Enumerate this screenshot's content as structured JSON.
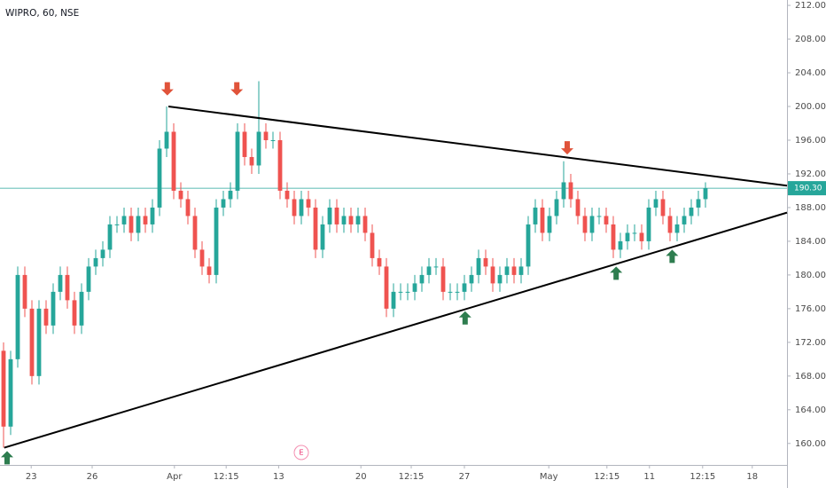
{
  "chart_data": {
    "type": "candlestick",
    "title": "WIPRO, 60, NSE",
    "up_color": "#26a69a",
    "down_color": "#ef5350",
    "xlim": [
      -0.5,
      110.5
    ],
    "xticks": [
      {
        "value": 3.9,
        "label": "23"
      },
      {
        "value": 12.5,
        "label": "26"
      },
      {
        "value": 24.1,
        "label": "Apr"
      },
      {
        "value": 31.4,
        "label": "12:15"
      },
      {
        "value": 38.8,
        "label": "13"
      },
      {
        "value": 50.4,
        "label": "20"
      },
      {
        "value": 57.5,
        "label": "12:15"
      },
      {
        "value": 65,
        "label": "27"
      },
      {
        "value": 76.9,
        "label": "May"
      },
      {
        "value": 85.1,
        "label": "12:15"
      },
      {
        "value": 91.1,
        "label": "11"
      },
      {
        "value": 98.6,
        "label": "12:15"
      },
      {
        "value": 105.6,
        "label": "18"
      }
    ],
    "ylim": [
      157.45,
      212.64
    ],
    "yticks": [
      {
        "value": 160,
        "label": "160.00"
      },
      {
        "value": 164,
        "label": "164.00"
      },
      {
        "value": 168,
        "label": "168.00"
      },
      {
        "value": 172,
        "label": "172.00"
      },
      {
        "value": 176,
        "label": "176.00"
      },
      {
        "value": 180,
        "label": "180.00"
      },
      {
        "value": 184,
        "label": "184.00"
      },
      {
        "value": 188,
        "label": "188.00"
      },
      {
        "value": 192,
        "label": "192.00"
      },
      {
        "value": 196,
        "label": "196.00"
      },
      {
        "value": 200,
        "label": "200.00"
      },
      {
        "value": 204,
        "label": "204.00"
      },
      {
        "value": 208,
        "label": "208.00"
      },
      {
        "value": 212,
        "label": "212.00"
      }
    ],
    "open": [
      171,
      162,
      170,
      180,
      176,
      168,
      176,
      174,
      178,
      180,
      177,
      174,
      178,
      181,
      182,
      183,
      186,
      186,
      187,
      185,
      187,
      186,
      188,
      195,
      197,
      190,
      189,
      187,
      183,
      181,
      180,
      188,
      189,
      190,
      197,
      194,
      193,
      197,
      196,
      196,
      190,
      189,
      187,
      189,
      188,
      183,
      186,
      188,
      186,
      187,
      186,
      187,
      185,
      182,
      181,
      176,
      178,
      178,
      178,
      179,
      180,
      181,
      181,
      178,
      178,
      178,
      179,
      180,
      182,
      181,
      179,
      180,
      181,
      180,
      181,
      186,
      188,
      185,
      187,
      189,
      191,
      189,
      187,
      185,
      187,
      187,
      186,
      183,
      184,
      185,
      185,
      184,
      188,
      189,
      187,
      185,
      186,
      187,
      188,
      189
    ],
    "high": [
      172,
      171,
      181,
      181,
      177,
      177,
      177,
      179,
      181,
      181,
      178,
      179,
      182,
      183,
      184,
      187,
      187,
      188,
      188,
      188,
      188,
      189,
      196,
      200,
      198,
      191,
      190,
      188,
      184,
      182,
      189,
      190,
      191,
      198,
      198,
      195,
      203,
      198,
      197,
      197,
      191,
      190,
      190,
      190,
      189,
      187,
      189,
      189,
      188,
      188,
      188,
      188,
      186,
      183,
      182,
      179,
      179,
      179,
      180,
      181,
      182,
      182,
      182,
      179,
      179,
      180,
      181,
      183,
      183,
      182,
      181,
      182,
      182,
      182,
      187,
      189,
      189,
      188,
      190,
      193.5,
      192,
      190,
      188,
      188,
      188,
      188,
      187,
      185,
      186,
      186,
      186,
      189,
      190,
      190,
      188,
      187,
      188,
      189,
      190,
      191
    ],
    "low": [
      159.5,
      161,
      169,
      175,
      167,
      167,
      173,
      173,
      177,
      176,
      173,
      173,
      177,
      180,
      181,
      182,
      185,
      185,
      184,
      184,
      185,
      185,
      187,
      194,
      189,
      188,
      186,
      182,
      180,
      179,
      179,
      187,
      188,
      189,
      193,
      192,
      192,
      195,
      195,
      189,
      188,
      186,
      186,
      187,
      182,
      182,
      185,
      185,
      185,
      185,
      185,
      184,
      181,
      180,
      175,
      175,
      177,
      177,
      177,
      178,
      179,
      180,
      177,
      177,
      177,
      177,
      178,
      179,
      180,
      178,
      178,
      179,
      179,
      179,
      180,
      185,
      184,
      184,
      186,
      188,
      188,
      186,
      184,
      184,
      186,
      185,
      182,
      182,
      183,
      184,
      183,
      183,
      187,
      186,
      184,
      184,
      185,
      186,
      187,
      188
    ],
    "close": [
      162,
      170,
      180,
      176,
      168,
      176,
      174,
      178,
      180,
      177,
      174,
      178,
      181,
      182,
      183,
      186,
      186,
      187,
      185,
      187,
      186,
      188,
      195,
      197,
      190,
      189,
      187,
      183,
      181,
      180,
      188,
      189,
      190,
      197,
      194,
      193,
      197,
      196,
      196,
      190,
      189,
      187,
      189,
      188,
      183,
      186,
      188,
      186,
      187,
      186,
      187,
      185,
      182,
      181,
      176,
      178,
      178,
      178,
      179,
      180,
      181,
      181,
      178,
      178,
      178,
      179,
      180,
      182,
      181,
      179,
      180,
      181,
      180,
      181,
      186,
      188,
      185,
      187,
      189,
      191,
      189,
      187,
      185,
      187,
      187,
      186,
      183,
      184,
      185,
      185,
      184,
      188,
      189,
      187,
      185,
      186,
      187,
      188,
      189,
      190.3
    ],
    "last_price": {
      "value": 190.3,
      "label": "190.30"
    },
    "trendlines": [
      {
        "x": [
          23.25,
          110.5
        ],
        "y": [
          200,
          190.6
        ],
        "color": "#000000"
      },
      {
        "x": [
          0.1,
          110.5
        ],
        "y": [
          159.5,
          187.4
        ],
        "color": "#000000"
      }
    ],
    "signals": [
      {
        "x": 23.1,
        "y": 201.3,
        "direction": "down",
        "color": "#e0533a"
      },
      {
        "x": 32.9,
        "y": 201.3,
        "direction": "down",
        "color": "#e0533a"
      },
      {
        "x": 79.5,
        "y": 194.3,
        "direction": "down",
        "color": "#e0533a"
      },
      {
        "x": 0.5,
        "y": 159.1,
        "direction": "up",
        "color": "#2e7d4f"
      },
      {
        "x": 65.1,
        "y": 175.7,
        "direction": "up",
        "color": "#2e7d4f"
      },
      {
        "x": 86.4,
        "y": 181,
        "direction": "up",
        "color": "#2e7d4f"
      },
      {
        "x": 94.3,
        "y": 183,
        "direction": "up",
        "color": "#2e7d4f"
      }
    ],
    "earnings": {
      "label": "E",
      "x": 42
    }
  }
}
